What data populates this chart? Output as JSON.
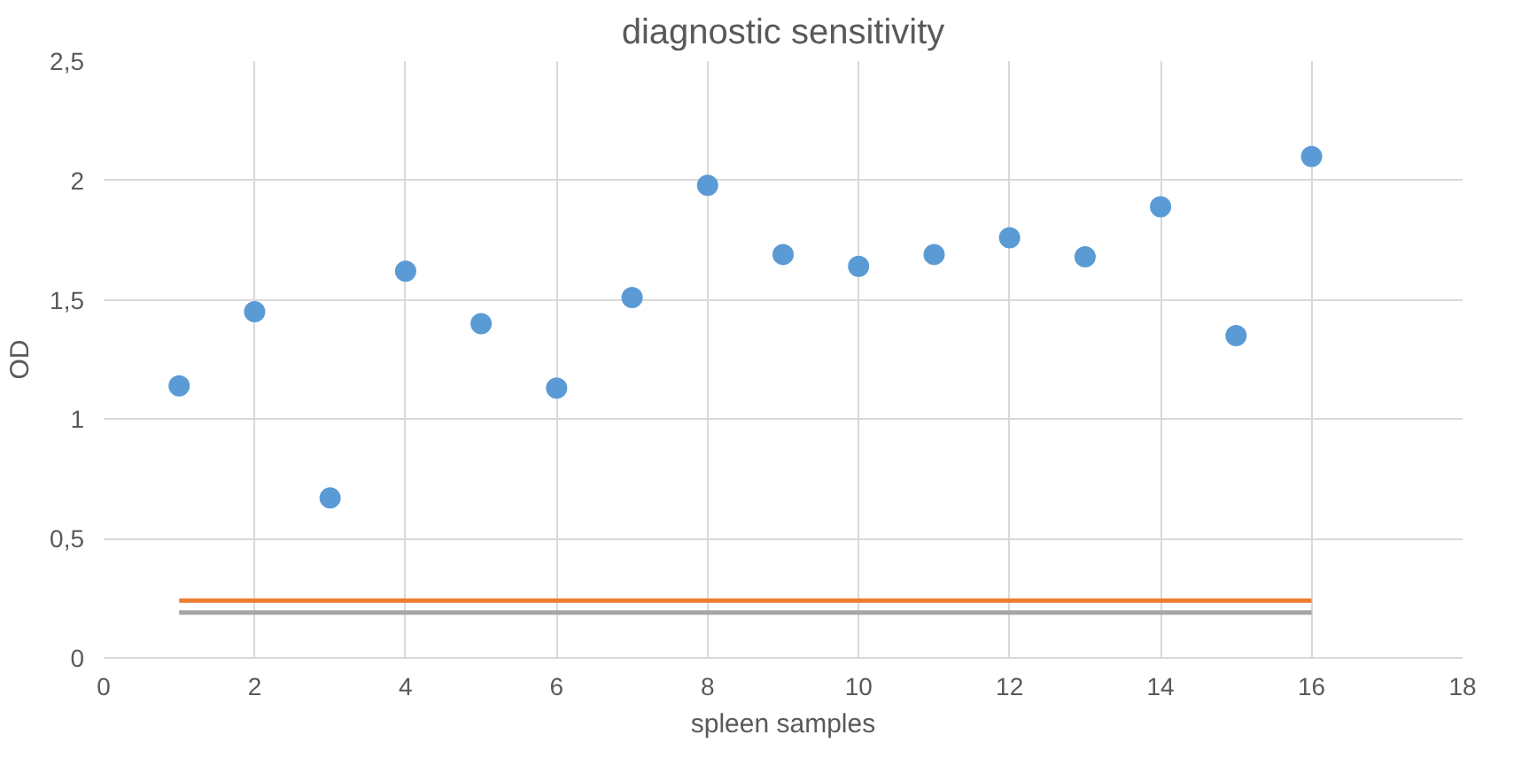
{
  "chart_data": {
    "type": "scatter",
    "title": "diagnostic sensitivity",
    "xlabel": "spleen samples",
    "ylabel": "OD",
    "x": [
      1,
      2,
      3,
      4,
      5,
      6,
      7,
      8,
      9,
      10,
      11,
      12,
      13,
      14,
      15,
      16
    ],
    "series": [
      {
        "color": "#5b9bd5",
        "values": [
          1.14,
          1.45,
          0.67,
          1.62,
          1.4,
          1.13,
          1.51,
          1.98,
          1.69,
          1.64,
          1.69,
          1.76,
          1.68,
          1.89,
          1.35,
          2.1
        ]
      },
      {
        "type": "line",
        "color": "#ed7d31",
        "values": [
          0.24,
          0.24,
          0.24,
          0.24,
          0.24,
          0.24,
          0.24,
          0.24,
          0.24,
          0.24,
          0.24,
          0.24,
          0.24,
          0.24,
          0.24,
          0.24
        ],
        "marker": "none"
      },
      {
        "type": "line",
        "color": "#a5a5a5",
        "values": [
          0.19,
          0.19,
          0.19,
          0.19,
          0.19,
          0.19,
          0.19,
          0.19,
          0.19,
          0.19,
          0.19,
          0.19,
          0.19,
          0.19,
          0.19,
          0.19
        ],
        "marker": "none"
      }
    ],
    "xlim": [
      0,
      18
    ],
    "xticks": [
      0,
      2,
      4,
      6,
      8,
      10,
      12,
      14,
      16,
      18
    ],
    "ylim": [
      0,
      2.5
    ],
    "yticks": [
      0,
      {
        "value": 0.5,
        "label": "0,5"
      },
      1,
      {
        "value": 1.5,
        "label": "1,5"
      },
      2,
      {
        "value": 2.5,
        "label": "2,5"
      }
    ],
    "grid": true,
    "marker": "circle"
  }
}
